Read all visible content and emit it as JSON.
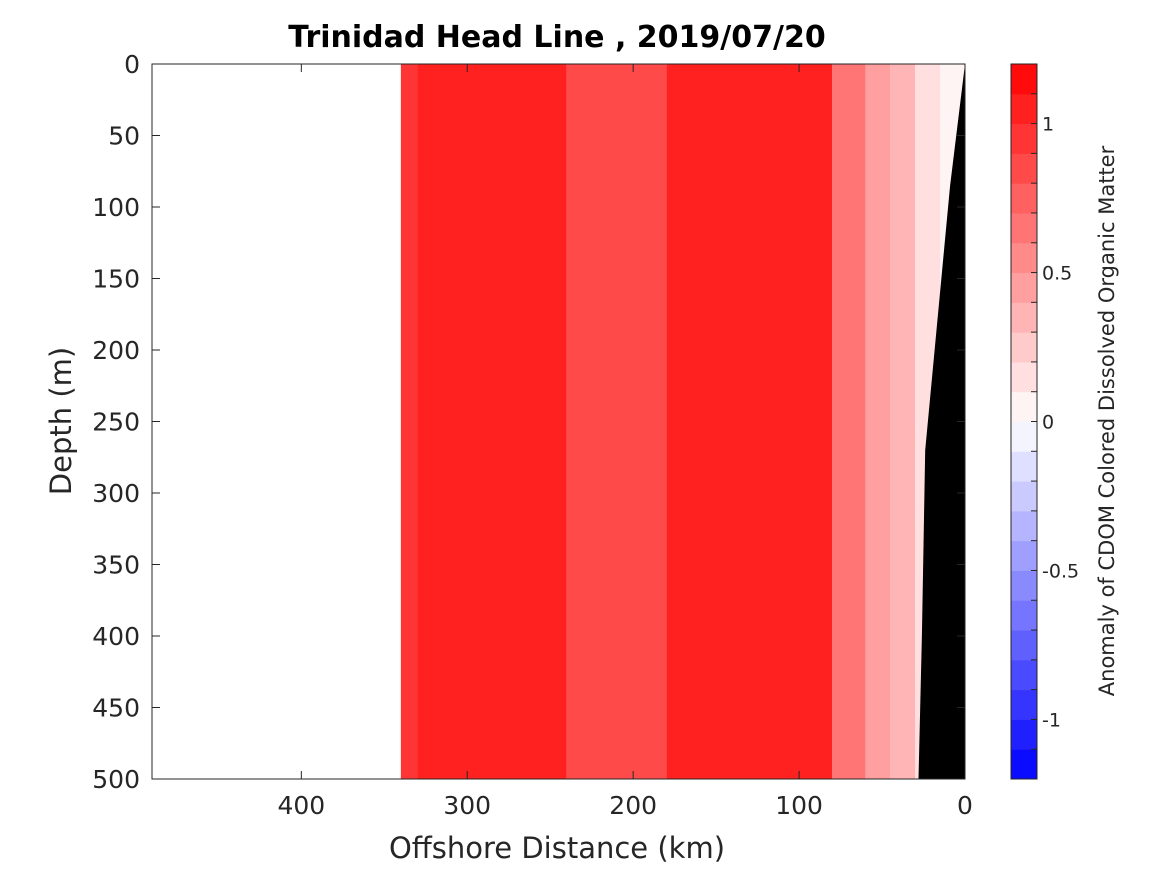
{
  "chart_data": {
    "type": "heatmap",
    "title": "Trinidad Head Line , 2019/07/20",
    "xlabel": "Offshore Distance (km)",
    "ylabel": "Depth (m)",
    "xlim": [
      490,
      0
    ],
    "ylim": [
      0,
      500
    ],
    "x_reversed": true,
    "y_reversed": true,
    "x_ticks": [
      400,
      300,
      200,
      100,
      0
    ],
    "y_ticks": [
      0,
      50,
      100,
      150,
      200,
      250,
      300,
      350,
      400,
      450,
      500
    ],
    "colorbar": {
      "label": "Anomaly of CDOM Colored Dissolved Organic Matter",
      "range": [
        -1.2,
        1.2
      ],
      "step": 0.1,
      "ticks": [
        -1,
        -0.5,
        0,
        0.5,
        1
      ],
      "tick_labels": [
        "-1",
        "-0.5",
        "0",
        "0.5",
        "1"
      ],
      "colormap": "blue-white-red"
    },
    "data_extent_km": [
      340,
      0
    ],
    "bathymetry_color": "#000000",
    "bathymetry_depth": [
      [
        0,
        0
      ],
      [
        9,
        85
      ],
      [
        24,
        270
      ],
      [
        26,
        400
      ],
      [
        28,
        500
      ]
    ],
    "zones": [
      {
        "x": [
          340,
          330
        ],
        "anomaly": 0.9
      },
      {
        "x": [
          330,
          240
        ],
        "anomaly": 1.0
      },
      {
        "x": [
          240,
          180
        ],
        "anomaly": 0.85
      },
      {
        "x": [
          180,
          80
        ],
        "anomaly": 1.05
      },
      {
        "x": [
          80,
          60
        ],
        "anomaly": 0.7
      },
      {
        "x": [
          60,
          45
        ],
        "anomaly": 0.45
      },
      {
        "x": [
          45,
          30
        ],
        "anomaly": 0.3
      },
      {
        "x": [
          30,
          15
        ],
        "anomaly": 0.15
      },
      {
        "x": [
          15,
          0
        ],
        "anomaly": 0.05
      }
    ]
  },
  "colors": {
    "max_red": "#ff0000",
    "max_blue": "#0000ff",
    "neutral": "#ffffff",
    "axis": "#262626"
  }
}
